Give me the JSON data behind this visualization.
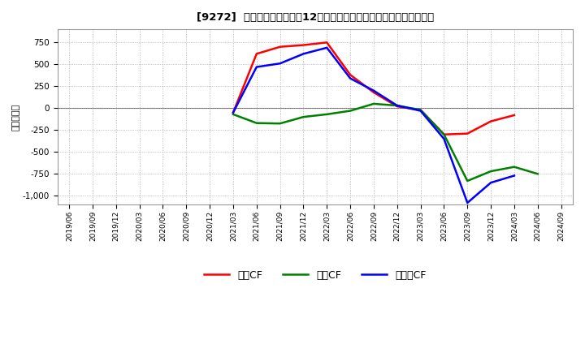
{
  "title": "[9272]  キャッシュフローの12か月移動合計の対前年同期増減額の推移",
  "ylabel": "（百万円）",
  "background_color": "#ffffff",
  "plot_bg_color": "#ffffff",
  "grid_color": "#aaaaaa",
  "ylim": [
    -1100,
    900
  ],
  "yticks": [
    -1000,
    -750,
    -500,
    -250,
    0,
    250,
    500,
    750
  ],
  "x_labels": [
    "2019/06",
    "2019/09",
    "2019/12",
    "2020/03",
    "2020/06",
    "2020/09",
    "2020/12",
    "2021/03",
    "2021/06",
    "2021/09",
    "2021/12",
    "2022/03",
    "2022/06",
    "2022/09",
    "2022/12",
    "2023/03",
    "2023/06",
    "2023/09",
    "2023/12",
    "2024/03",
    "2024/06",
    "2024/09"
  ],
  "legend_labels": [
    "営業CF",
    "投資CF",
    "フリーCF"
  ],
  "series": {
    "営業CF": {
      "color": "#ff0000",
      "data": {
        "2021/03": -50,
        "2021/06": 620,
        "2021/09": 700,
        "2021/12": 720,
        "2022/03": 750,
        "2022/06": 380,
        "2022/09": 180,
        "2022/12": 20,
        "2023/03": -20,
        "2023/06": -300,
        "2023/09": -290,
        "2023/12": -150,
        "2024/03": -80
      }
    },
    "投資CF": {
      "color": "#008000",
      "data": {
        "2021/03": -70,
        "2021/06": -170,
        "2021/09": -175,
        "2021/12": -100,
        "2022/03": -70,
        "2022/06": -30,
        "2022/09": 50,
        "2022/12": 30,
        "2023/03": -20,
        "2023/06": -300,
        "2023/09": -830,
        "2023/12": -720,
        "2024/03": -670,
        "2024/06": -750
      }
    },
    "フリーCF": {
      "color": "#0000ff",
      "data": {
        "2021/03": -50,
        "2021/06": 470,
        "2021/09": 510,
        "2021/12": 620,
        "2022/03": 690,
        "2022/06": 340,
        "2022/09": 200,
        "2022/12": 30,
        "2023/03": -30,
        "2023/06": -350,
        "2023/09": -1080,
        "2023/12": -850,
        "2024/03": -770
      }
    }
  }
}
